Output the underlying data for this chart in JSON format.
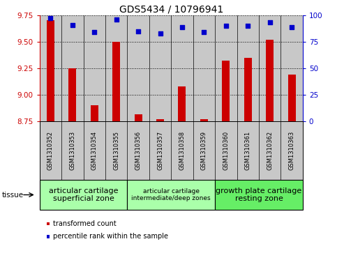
{
  "title": "GDS5434 / 10796941",
  "samples": [
    "GSM1310352",
    "GSM1310353",
    "GSM1310354",
    "GSM1310355",
    "GSM1310356",
    "GSM1310357",
    "GSM1310358",
    "GSM1310359",
    "GSM1310360",
    "GSM1310361",
    "GSM1310362",
    "GSM1310363"
  ],
  "bar_values": [
    9.7,
    9.25,
    8.9,
    9.5,
    8.82,
    8.77,
    9.08,
    8.77,
    9.32,
    9.35,
    9.52,
    9.19
  ],
  "dot_values": [
    97,
    91,
    84,
    96,
    85,
    83,
    89,
    84,
    90,
    90,
    93,
    89
  ],
  "ylim": [
    8.75,
    9.75
  ],
  "y2lim": [
    0,
    100
  ],
  "yticks": [
    8.75,
    9.0,
    9.25,
    9.5,
    9.75
  ],
  "y2ticks": [
    0,
    25,
    50,
    75,
    100
  ],
  "bar_color": "#cc0000",
  "dot_color": "#0000cc",
  "col_bg_color": "#c8c8c8",
  "tissue_groups": [
    {
      "label": "articular cartilage\nsuperficial zone",
      "start": 0,
      "end": 3,
      "color": "#aaffaa",
      "fontsize": 8
    },
    {
      "label": "articular cartilage\nintermediate/deep zones",
      "start": 4,
      "end": 7,
      "color": "#aaffaa",
      "fontsize": 6.5
    },
    {
      "label": "growth plate cartilage\nresting zone",
      "start": 8,
      "end": 11,
      "color": "#66ee66",
      "fontsize": 8
    }
  ],
  "legend_labels": [
    "transformed count",
    "percentile rank within the sample"
  ],
  "legend_colors": [
    "#cc0000",
    "#0000cc"
  ],
  "tissue_label": "tissue",
  "title_fontsize": 10,
  "tick_fontsize": 7.5,
  "xtick_fontsize": 6
}
